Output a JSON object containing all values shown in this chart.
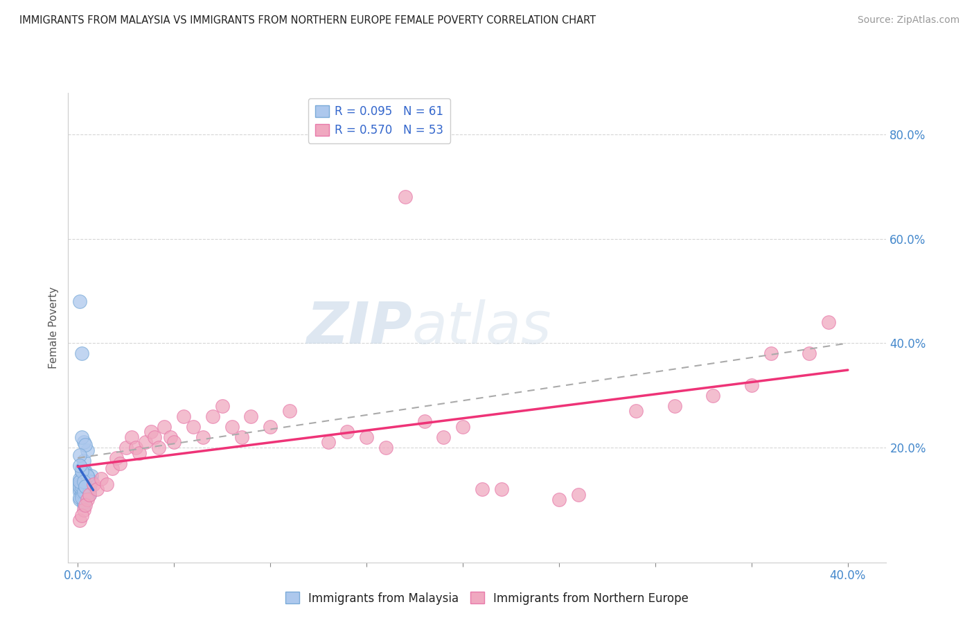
{
  "title": "IMMIGRANTS FROM MALAYSIA VS IMMIGRANTS FROM NORTHERN EUROPE FEMALE POVERTY CORRELATION CHART",
  "source": "Source: ZipAtlas.com",
  "ylabel": "Female Poverty",
  "y_ticks": [
    0.0,
    0.2,
    0.4,
    0.6,
    0.8
  ],
  "y_tick_labels_right": [
    "",
    "20.0%",
    "40.0%",
    "60.0%",
    "80.0%"
  ],
  "x_ticks": [
    0.0,
    0.05,
    0.1,
    0.15,
    0.2,
    0.25,
    0.3,
    0.35,
    0.4
  ],
  "x_tick_labels": [
    "0.0%",
    "",
    "",
    "",
    "",
    "",
    "",
    "",
    "40.0%"
  ],
  "xlim": [
    -0.005,
    0.42
  ],
  "ylim": [
    -0.02,
    0.88
  ],
  "malaysia_R": 0.095,
  "malaysia_N": 61,
  "northern_europe_R": 0.57,
  "northern_europe_N": 53,
  "malaysia_color": "#adc8ed",
  "northern_europe_color": "#f0a8c0",
  "malaysia_edge_color": "#7aaad8",
  "northern_europe_edge_color": "#e87aaa",
  "malaysia_trend_color": "#3366cc",
  "northern_europe_trend_color": "#ee3377",
  "trend_dash_color": "#aaaaaa",
  "background_color": "#ffffff",
  "watermark_zip": "ZIP",
  "watermark_atlas": "atlas",
  "legend_label_1": "Immigrants from Malaysia",
  "legend_label_2": "Immigrants from Northern Europe",
  "malaysia_scatter": [
    [
      0.001,
      0.135
    ],
    [
      0.002,
      0.13
    ],
    [
      0.003,
      0.125
    ],
    [
      0.001,
      0.12
    ],
    [
      0.004,
      0.14
    ],
    [
      0.002,
      0.145
    ],
    [
      0.005,
      0.13
    ],
    [
      0.003,
      0.155
    ],
    [
      0.006,
      0.12
    ],
    [
      0.001,
      0.1
    ],
    [
      0.002,
      0.11
    ],
    [
      0.003,
      0.09
    ],
    [
      0.004,
      0.135
    ],
    [
      0.001,
      0.14
    ],
    [
      0.005,
      0.115
    ],
    [
      0.002,
      0.125
    ],
    [
      0.006,
      0.11
    ],
    [
      0.003,
      0.15
    ],
    [
      0.001,
      0.115
    ],
    [
      0.004,
      0.125
    ],
    [
      0.007,
      0.135
    ],
    [
      0.002,
      0.16
    ],
    [
      0.005,
      0.145
    ],
    [
      0.001,
      0.105
    ],
    [
      0.003,
      0.175
    ],
    [
      0.006,
      0.125
    ],
    [
      0.002,
      0.115
    ],
    [
      0.004,
      0.155
    ],
    [
      0.001,
      0.13
    ],
    [
      0.005,
      0.125
    ],
    [
      0.003,
      0.095
    ],
    [
      0.007,
      0.145
    ],
    [
      0.002,
      0.115
    ],
    [
      0.004,
      0.135
    ],
    [
      0.006,
      0.125
    ],
    [
      0.003,
      0.155
    ],
    [
      0.002,
      0.105
    ],
    [
      0.005,
      0.145
    ],
    [
      0.001,
      0.125
    ],
    [
      0.004,
      0.115
    ],
    [
      0.007,
      0.135
    ],
    [
      0.002,
      0.155
    ],
    [
      0.003,
      0.125
    ],
    [
      0.005,
      0.195
    ],
    [
      0.003,
      0.21
    ],
    [
      0.002,
      0.22
    ],
    [
      0.004,
      0.205
    ],
    [
      0.001,
      0.185
    ],
    [
      0.006,
      0.135
    ],
    [
      0.002,
      0.125
    ],
    [
      0.003,
      0.115
    ],
    [
      0.001,
      0.135
    ],
    [
      0.005,
      0.145
    ],
    [
      0.004,
      0.125
    ],
    [
      0.002,
      0.155
    ],
    [
      0.006,
      0.115
    ],
    [
      0.003,
      0.135
    ],
    [
      0.001,
      0.165
    ],
    [
      0.004,
      0.125
    ],
    [
      0.001,
      0.48
    ],
    [
      0.002,
      0.38
    ]
  ],
  "northern_europe_scatter": [
    [
      0.001,
      0.06
    ],
    [
      0.003,
      0.08
    ],
    [
      0.005,
      0.1
    ],
    [
      0.002,
      0.07
    ],
    [
      0.004,
      0.09
    ],
    [
      0.006,
      0.11
    ],
    [
      0.008,
      0.13
    ],
    [
      0.01,
      0.12
    ],
    [
      0.012,
      0.14
    ],
    [
      0.015,
      0.13
    ],
    [
      0.018,
      0.16
    ],
    [
      0.02,
      0.18
    ],
    [
      0.022,
      0.17
    ],
    [
      0.025,
      0.2
    ],
    [
      0.028,
      0.22
    ],
    [
      0.03,
      0.2
    ],
    [
      0.032,
      0.19
    ],
    [
      0.035,
      0.21
    ],
    [
      0.038,
      0.23
    ],
    [
      0.04,
      0.22
    ],
    [
      0.042,
      0.2
    ],
    [
      0.045,
      0.24
    ],
    [
      0.048,
      0.22
    ],
    [
      0.05,
      0.21
    ],
    [
      0.055,
      0.26
    ],
    [
      0.06,
      0.24
    ],
    [
      0.065,
      0.22
    ],
    [
      0.07,
      0.26
    ],
    [
      0.075,
      0.28
    ],
    [
      0.08,
      0.24
    ],
    [
      0.085,
      0.22
    ],
    [
      0.09,
      0.26
    ],
    [
      0.1,
      0.24
    ],
    [
      0.11,
      0.27
    ],
    [
      0.13,
      0.21
    ],
    [
      0.14,
      0.23
    ],
    [
      0.15,
      0.22
    ],
    [
      0.16,
      0.2
    ],
    [
      0.18,
      0.25
    ],
    [
      0.19,
      0.22
    ],
    [
      0.2,
      0.24
    ],
    [
      0.21,
      0.12
    ],
    [
      0.22,
      0.12
    ],
    [
      0.25,
      0.1
    ],
    [
      0.26,
      0.11
    ],
    [
      0.17,
      0.68
    ],
    [
      0.29,
      0.27
    ],
    [
      0.31,
      0.28
    ],
    [
      0.33,
      0.3
    ],
    [
      0.35,
      0.32
    ],
    [
      0.36,
      0.38
    ],
    [
      0.38,
      0.38
    ],
    [
      0.39,
      0.44
    ]
  ]
}
